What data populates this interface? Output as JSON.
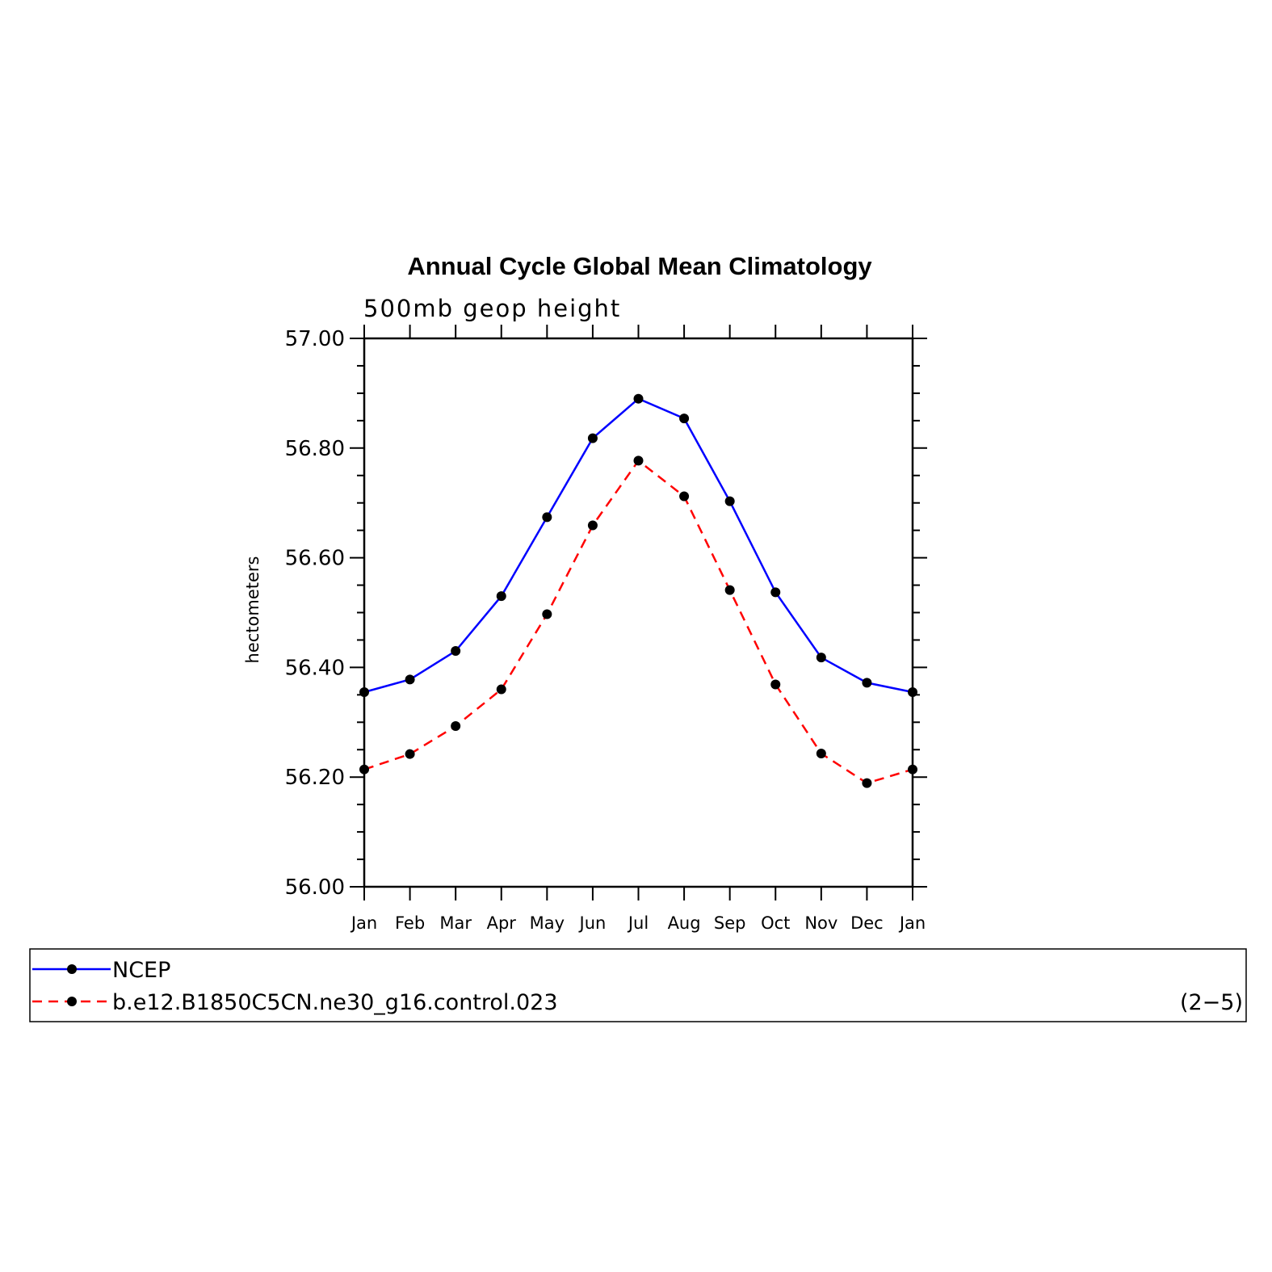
{
  "chart_data": {
    "type": "line",
    "title": "Annual Cycle Global Mean Climatology",
    "subtitle": "500mb geop height",
    "ylabel": "hectometers",
    "xlabel": "",
    "ylim": [
      56.0,
      57.0
    ],
    "ytick_labels": [
      "56.00",
      "56.20",
      "56.40",
      "56.60",
      "56.80",
      "57.00"
    ],
    "categories": [
      "Jan",
      "Feb",
      "Mar",
      "Apr",
      "May",
      "Jun",
      "Jul",
      "Aug",
      "Sep",
      "Oct",
      "Nov",
      "Dec",
      "Jan"
    ],
    "series": [
      {
        "name": "NCEP",
        "color": "#0000ff",
        "dashed": false,
        "values": [
          56.355,
          56.378,
          56.43,
          56.53,
          56.674,
          56.818,
          56.89,
          56.854,
          56.703,
          56.537,
          56.418,
          56.372,
          56.355
        ]
      },
      {
        "name": "b.e12.B1850C5CN.ne30_g16.control.023",
        "color": "#ff0000",
        "dashed": true,
        "values": [
          56.214,
          56.242,
          56.293,
          56.36,
          56.497,
          56.659,
          56.777,
          56.712,
          56.541,
          56.369,
          56.243,
          56.189,
          56.214
        ]
      }
    ],
    "marker_color": "#000000",
    "legend_placement": "bottom",
    "panel_label": "(2−5)",
    "grid": false
  }
}
